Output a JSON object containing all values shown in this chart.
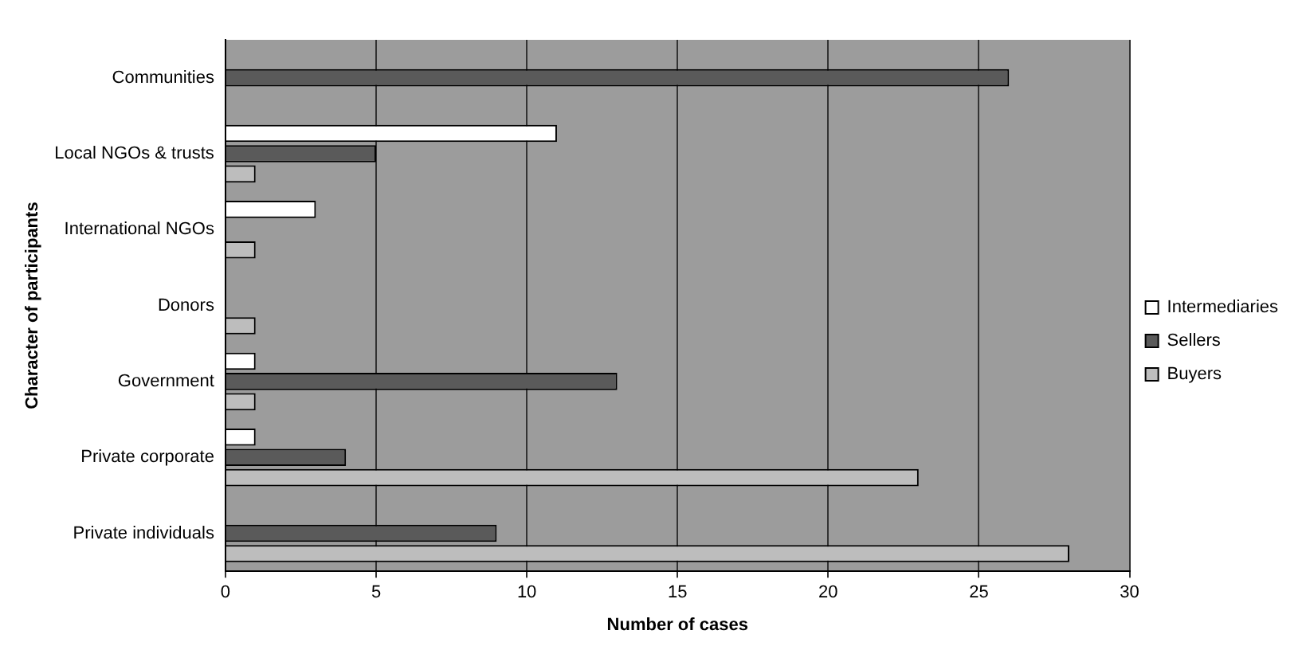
{
  "chart_data": {
    "type": "bar",
    "orientation": "horizontal",
    "xlabel": "Number of cases",
    "ylabel": "Character of participants",
    "categories": [
      "Communities",
      "Local NGOs & trusts",
      "International NGOs",
      "Donors",
      "Government",
      "Private corporate",
      "Private individuals"
    ],
    "series": [
      {
        "name": "Intermediaries",
        "color": "#ffffff",
        "values": [
          0,
          11,
          3,
          0,
          1,
          1,
          0
        ]
      },
      {
        "name": "Sellers",
        "color": "#5a5a5a",
        "values": [
          26,
          5,
          0,
          0,
          13,
          4,
          9
        ]
      },
      {
        "name": "Buyers",
        "color": "#bdbdbd",
        "values": [
          0,
          1,
          1,
          1,
          1,
          23,
          28
        ]
      }
    ],
    "xlim": [
      0,
      30
    ],
    "xticks": [
      0,
      5,
      10,
      15,
      20,
      25,
      30
    ],
    "grid": "x",
    "legend": "right"
  }
}
